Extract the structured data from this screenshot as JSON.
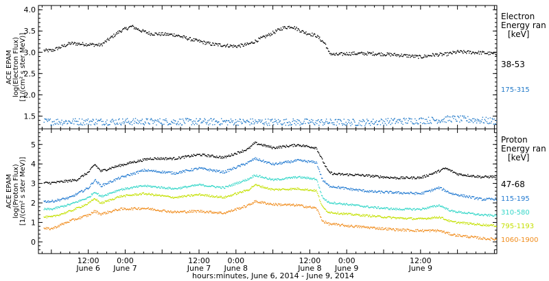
{
  "chart_data": [
    {
      "type": "scatter",
      "panel": "electron",
      "ylabel": [
        "ACE EPAM",
        "log(Electron Flux)",
        "[1/(cm² s ster MeV)]"
      ],
      "ylim": [
        1.2,
        4.1
      ],
      "yticks": [
        "1.5",
        "2.0",
        "2.5",
        "3.0",
        "3.5",
        "4.0"
      ],
      "legend_title": [
        "Electron",
        "Energy ran",
        "[keV]"
      ],
      "series": [
        {
          "name": "38-53",
          "color": "#000000",
          "anchors": [
            [
              0,
              3.05
            ],
            [
              6,
              3.22
            ],
            [
              16,
              3.18
            ],
            [
              22,
              3.5
            ],
            [
              26,
              3.62
            ],
            [
              29,
              3.52
            ],
            [
              32,
              3.45
            ],
            [
              40,
              3.42
            ],
            [
              46,
              3.3
            ],
            [
              52,
              3.2
            ],
            [
              60,
              3.15
            ],
            [
              64,
              3.2
            ],
            [
              70,
              3.4
            ],
            [
              75,
              3.58
            ],
            [
              78,
              3.62
            ],
            [
              82,
              3.48
            ],
            [
              86,
              3.4
            ],
            [
              89,
              3.2
            ],
            [
              90,
              3.0
            ],
            [
              92,
              2.95
            ],
            [
              96,
              2.98
            ],
            [
              104,
              2.98
            ],
            [
              112,
              2.95
            ],
            [
              120,
              2.9
            ],
            [
              124,
              2.95
            ],
            [
              128,
              2.96
            ],
            [
              132,
              3.02
            ],
            [
              140,
              3.0
            ],
            [
              144,
              2.97
            ],
            [
              149,
              2.95
            ]
          ],
          "jitter": 0.04
        },
        {
          "name": "175-315",
          "color": "#1f78c8",
          "anchors": [
            [
              0,
              1.38
            ],
            [
              40,
              1.38
            ],
            [
              80,
              1.37
            ],
            [
              100,
              1.36
            ],
            [
              126,
              1.42
            ],
            [
              130,
              1.45
            ],
            [
              149,
              1.37
            ]
          ],
          "jitter": 0.08
        }
      ]
    },
    {
      "type": "scatter",
      "panel": "proton",
      "ylabel": [
        "ACE EPAM",
        "log(Proton Flux)",
        "[1/(cm² s ster MeV)]"
      ],
      "ylim": [
        -0.6,
        5.8
      ],
      "yticks": [
        "0",
        "1",
        "2",
        "3",
        "4",
        "5"
      ],
      "legend_title": [
        "Proton",
        "Energy ran",
        "[keV]"
      ],
      "xlabel": "hours:minutes, June  6, 2014 - June  9, 2014",
      "xticks": [
        {
          "h": 12,
          "time": "12:00",
          "day": "June 6"
        },
        {
          "h": 24,
          "time": "0:00",
          "day": "June 7"
        },
        {
          "h": 48,
          "time": "12:00",
          "day": "June 7"
        },
        {
          "h": 60,
          "time": "0:00",
          "day": "June 8"
        },
        {
          "h": 84,
          "time": "12:00",
          "day": "June 8"
        },
        {
          "h": 96,
          "time": "0:00",
          "day": "June 9"
        },
        {
          "h": 120,
          "time": "12:00",
          "day": "June 9"
        }
      ],
      "series": [
        {
          "name": "47-68",
          "color": "#000000",
          "anchors": [
            [
              0,
              3.05
            ],
            [
              8,
              3.2
            ],
            [
              12,
              3.6
            ],
            [
              14,
              4.0
            ],
            [
              16,
              3.65
            ],
            [
              20,
              3.85
            ],
            [
              26,
              4.1
            ],
            [
              32,
              4.3
            ],
            [
              40,
              4.3
            ],
            [
              48,
              4.5
            ],
            [
              56,
              4.35
            ],
            [
              64,
              4.8
            ],
            [
              66,
              5.1
            ],
            [
              72,
              4.85
            ],
            [
              80,
              5.0
            ],
            [
              86,
              4.85
            ],
            [
              88,
              4.2
            ],
            [
              90,
              3.6
            ],
            [
              92,
              3.5
            ],
            [
              100,
              3.45
            ],
            [
              108,
              3.35
            ],
            [
              112,
              3.3
            ],
            [
              120,
              3.32
            ],
            [
              125,
              3.6
            ],
            [
              128,
              3.8
            ],
            [
              132,
              3.5
            ],
            [
              140,
              3.35
            ],
            [
              149,
              3.4
            ]
          ],
          "jitter": 0.06
        },
        {
          "name": "115-195",
          "color": "#1f78d0",
          "anchors": [
            [
              0,
              2.1
            ],
            [
              6,
              2.3
            ],
            [
              12,
              2.8
            ],
            [
              14,
              3.2
            ],
            [
              16,
              2.9
            ],
            [
              22,
              3.3
            ],
            [
              30,
              3.7
            ],
            [
              40,
              3.55
            ],
            [
              48,
              3.8
            ],
            [
              56,
              3.6
            ],
            [
              64,
              4.1
            ],
            [
              66,
              4.3
            ],
            [
              72,
              4.0
            ],
            [
              80,
              4.2
            ],
            [
              86,
              4.1
            ],
            [
              88,
              3.2
            ],
            [
              90,
              2.9
            ],
            [
              96,
              2.75
            ],
            [
              104,
              2.6
            ],
            [
              112,
              2.55
            ],
            [
              120,
              2.5
            ],
            [
              126,
              2.8
            ],
            [
              130,
              2.5
            ],
            [
              140,
              2.2
            ],
            [
              149,
              2.25
            ]
          ],
          "jitter": 0.06
        },
        {
          "name": "310-580",
          "color": "#33d6c8",
          "anchors": [
            [
              0,
              1.7
            ],
            [
              6,
              1.95
            ],
            [
              12,
              2.3
            ],
            [
              14,
              2.6
            ],
            [
              16,
              2.35
            ],
            [
              22,
              2.7
            ],
            [
              30,
              2.9
            ],
            [
              40,
              2.75
            ],
            [
              48,
              2.95
            ],
            [
              56,
              2.8
            ],
            [
              64,
              3.25
            ],
            [
              66,
              3.45
            ],
            [
              72,
              3.2
            ],
            [
              80,
              3.35
            ],
            [
              86,
              3.25
            ],
            [
              88,
              2.3
            ],
            [
              90,
              2.05
            ],
            [
              96,
              1.95
            ],
            [
              104,
              1.8
            ],
            [
              112,
              1.7
            ],
            [
              120,
              1.7
            ],
            [
              126,
              1.9
            ],
            [
              130,
              1.6
            ],
            [
              140,
              1.4
            ],
            [
              149,
              1.35
            ]
          ],
          "jitter": 0.05
        },
        {
          "name": "795-1193",
          "color": "#c4e000",
          "anchors": [
            [
              0,
              1.3
            ],
            [
              6,
              1.6
            ],
            [
              12,
              2.0
            ],
            [
              14,
              2.25
            ],
            [
              16,
              2.0
            ],
            [
              22,
              2.35
            ],
            [
              30,
              2.5
            ],
            [
              40,
              2.3
            ],
            [
              48,
              2.45
            ],
            [
              56,
              2.3
            ],
            [
              64,
              2.7
            ],
            [
              66,
              2.95
            ],
            [
              72,
              2.7
            ],
            [
              80,
              2.75
            ],
            [
              86,
              2.65
            ],
            [
              88,
              1.8
            ],
            [
              90,
              1.55
            ],
            [
              96,
              1.45
            ],
            [
              104,
              1.35
            ],
            [
              112,
              1.25
            ],
            [
              120,
              1.2
            ],
            [
              126,
              1.3
            ],
            [
              130,
              1.05
            ],
            [
              140,
              0.9
            ],
            [
              149,
              0.8
            ]
          ],
          "jitter": 0.05
        },
        {
          "name": "1060-1900",
          "color": "#f08c1c",
          "anchors": [
            [
              0,
              0.7
            ],
            [
              6,
              1.1
            ],
            [
              12,
              1.4
            ],
            [
              14,
              1.6
            ],
            [
              16,
              1.45
            ],
            [
              22,
              1.7
            ],
            [
              30,
              1.75
            ],
            [
              40,
              1.55
            ],
            [
              48,
              1.6
            ],
            [
              56,
              1.5
            ],
            [
              64,
              1.9
            ],
            [
              66,
              2.1
            ],
            [
              72,
              1.95
            ],
            [
              80,
              1.9
            ],
            [
              86,
              1.75
            ],
            [
              88,
              1.1
            ],
            [
              90,
              0.95
            ],
            [
              96,
              0.85
            ],
            [
              104,
              0.75
            ],
            [
              112,
              0.65
            ],
            [
              120,
              0.6
            ],
            [
              126,
              0.6
            ],
            [
              130,
              0.4
            ],
            [
              140,
              0.2
            ],
            [
              149,
              0.1
            ]
          ],
          "jitter": 0.06
        }
      ]
    }
  ]
}
